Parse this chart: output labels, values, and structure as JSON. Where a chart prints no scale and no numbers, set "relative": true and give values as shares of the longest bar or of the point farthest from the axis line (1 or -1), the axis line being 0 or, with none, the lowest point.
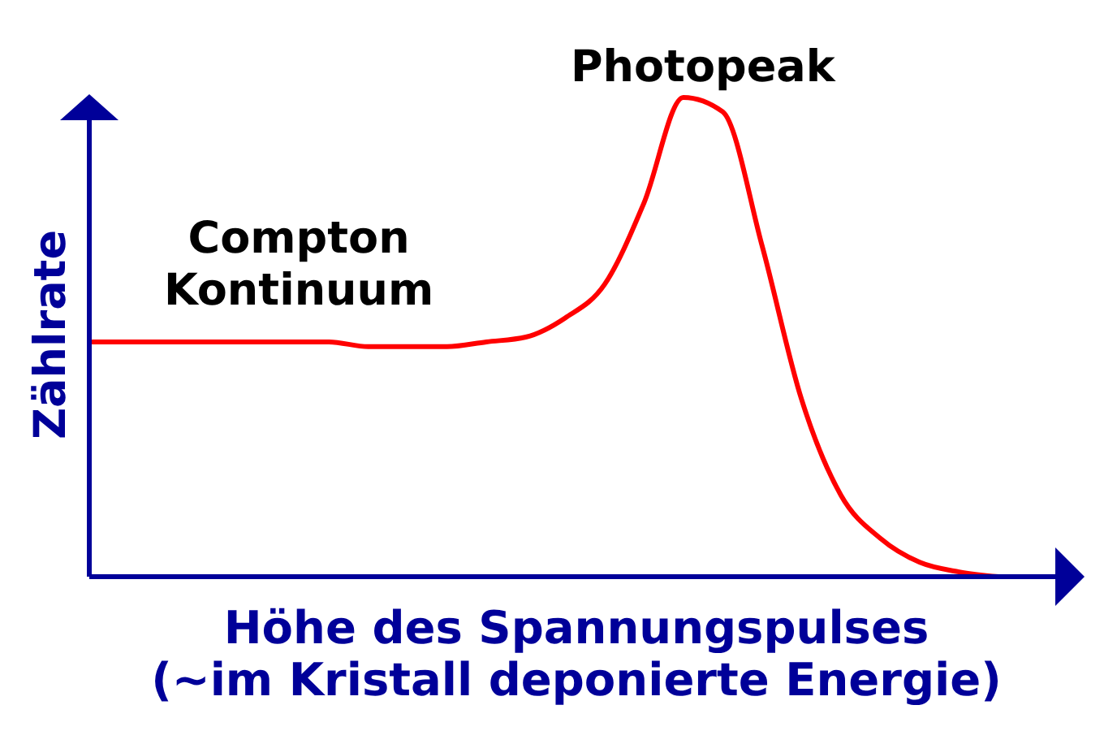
{
  "chart_data": {
    "type": "line",
    "relative": true,
    "xlabel": "Höhe des Spannungspulses\n(~im Kristall deponierte Energie)",
    "ylabel": "Zählrate",
    "annotations": [
      "Compton\nKontinuum",
      "Photopeak"
    ],
    "categories": [
      null,
      null,
      null,
      null,
      null,
      null,
      null,
      null,
      null,
      null,
      null,
      null,
      null,
      null,
      null,
      null,
      null,
      null,
      null,
      null,
      null,
      null,
      null,
      null
    ],
    "series": [
      {
        "color": "#ff0000",
        "values": [
          0.49,
          0.49,
          0.49,
          0.49,
          0.49,
          0.49,
          0.49,
          0.48,
          0.48,
          0.48,
          0.49,
          0.5,
          0.54,
          0.61,
          0.78,
          1,
          0.97,
          0.69,
          0.37,
          0.17,
          0.08,
          0.03,
          0.01,
          0
        ]
      }
    ]
  }
}
